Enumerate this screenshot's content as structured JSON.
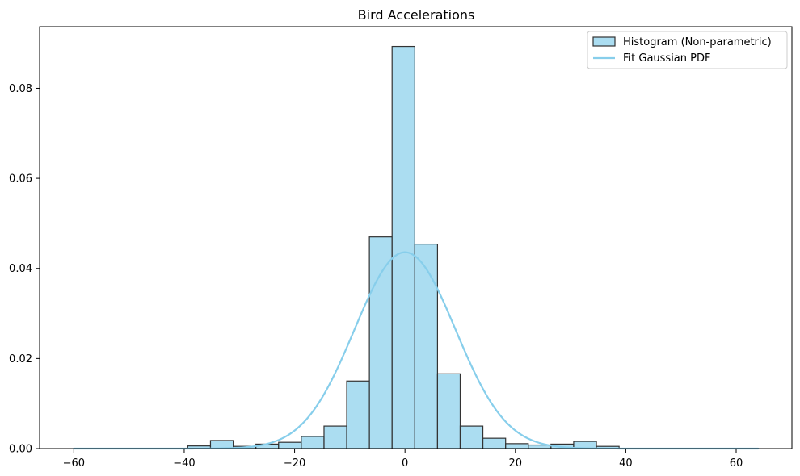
{
  "chart_data": {
    "type": "bar",
    "title": "Bird Accelerations",
    "xlabel": "",
    "ylabel": "",
    "xlim": [
      -66.2,
      70.1
    ],
    "ylim": [
      0,
      0.0937
    ],
    "x_ticks": [
      -60,
      -40,
      -20,
      0,
      20,
      40,
      60
    ],
    "y_ticks": [
      0.0,
      0.02,
      0.04,
      0.06,
      0.08
    ],
    "x_tick_labels": [
      "−60",
      "−40",
      "−20",
      "0",
      "20",
      "40",
      "60"
    ],
    "y_tick_labels": [
      "0.00",
      "0.02",
      "0.04",
      "0.06",
      "0.08"
    ],
    "grid": false,
    "legend_position": "top-right",
    "colors": {
      "bar_fill": "#87CEEB",
      "bar_edge": "#333333",
      "line": "#87CEEB",
      "axis": "#000000"
    },
    "series": [
      {
        "name": "Histogram (Non-parametric)",
        "kind": "histogram",
        "bin_edges": [
          -39.35,
          -35.24,
          -31.12,
          -27.01,
          -22.9,
          -18.79,
          -14.67,
          -10.56,
          -6.45,
          -2.34,
          1.78,
          5.89,
          10.0,
          14.11,
          18.23,
          22.34,
          26.45,
          30.56,
          34.68,
          38.79
        ],
        "values": [
          0.0006,
          0.0018,
          0.0005,
          0.001,
          0.0014,
          0.0027,
          0.005,
          0.015,
          0.047,
          0.0893,
          0.0454,
          0.0166,
          0.005,
          0.0023,
          0.0011,
          0.0008,
          0.001,
          0.0016,
          0.0005
        ]
      },
      {
        "name": "Fit Gaussian PDF",
        "kind": "line",
        "mean": 0.0,
        "std": 9.15,
        "x_range": [
          -60,
          64
        ]
      }
    ]
  }
}
